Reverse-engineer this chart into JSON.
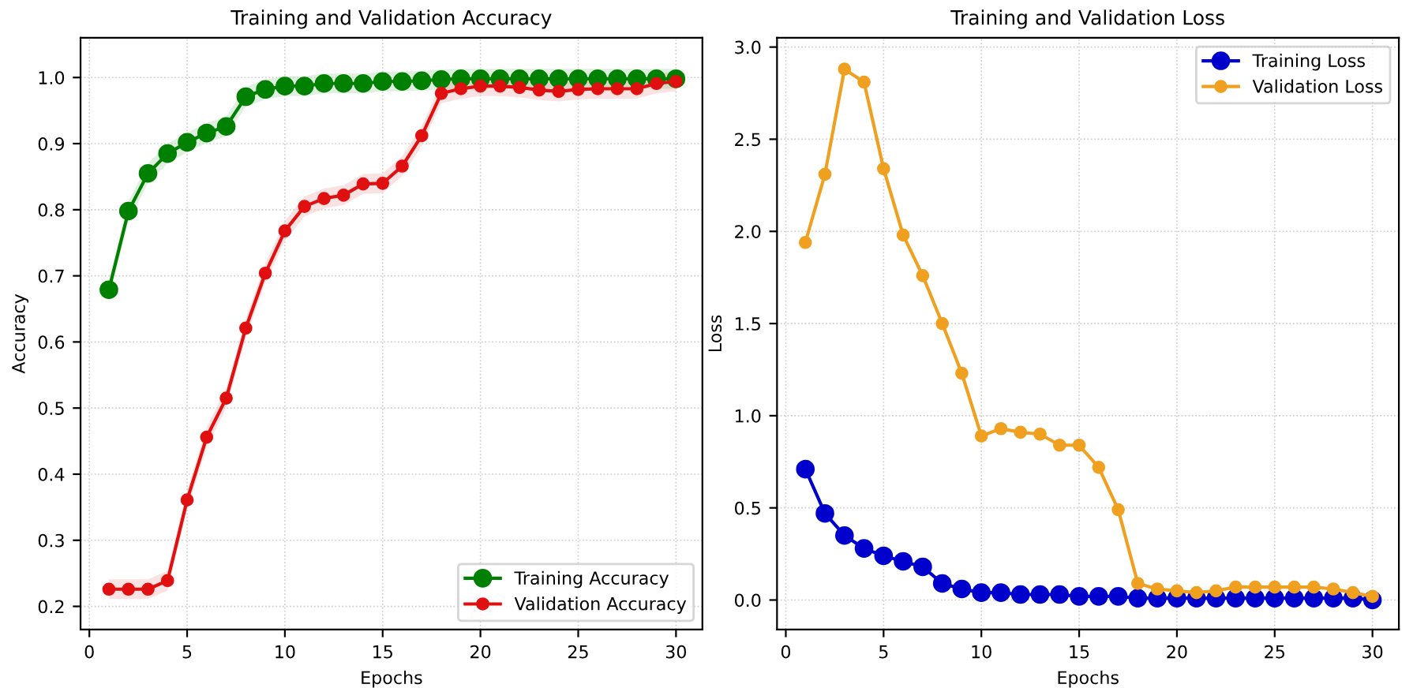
{
  "chart_data": [
    {
      "type": "line",
      "title": "Training and Validation Accuracy",
      "xlabel": "Epochs",
      "ylabel": "Accuracy",
      "x": [
        1,
        2,
        3,
        4,
        5,
        6,
        7,
        8,
        9,
        10,
        11,
        12,
        13,
        14,
        15,
        16,
        17,
        18,
        19,
        20,
        21,
        22,
        23,
        24,
        25,
        26,
        27,
        28,
        29,
        30
      ],
      "series": [
        {
          "name": "Training Accuracy",
          "color": "#008000",
          "values": [
            0.679,
            0.798,
            0.855,
            0.885,
            0.902,
            0.916,
            0.926,
            0.971,
            0.982,
            0.987,
            0.987,
            0.991,
            0.991,
            0.991,
            0.994,
            0.994,
            0.995,
            0.997,
            0.998,
            0.998,
            0.998,
            0.998,
            0.998,
            0.998,
            0.998,
            0.998,
            0.998,
            0.998,
            0.998,
            0.998
          ],
          "lower": [
            0.664,
            0.783,
            0.84,
            0.87,
            0.887,
            0.901,
            0.911,
            0.956,
            0.967,
            0.972,
            0.972,
            0.976,
            0.976,
            0.976,
            0.979,
            0.979,
            0.98,
            0.982,
            0.983,
            0.983,
            0.983,
            0.983,
            0.983,
            0.983,
            0.983,
            0.983,
            0.983,
            0.983,
            0.983,
            0.983
          ],
          "upper": [
            0.694,
            0.813,
            0.87,
            0.9,
            0.917,
            0.931,
            0.941,
            0.986,
            0.997,
            1.002,
            1.002,
            1.006,
            1.006,
            1.006,
            1.009,
            1.009,
            1.01,
            1.012,
            1.013,
            1.013,
            1.013,
            1.013,
            1.013,
            1.013,
            1.013,
            1.013,
            1.013,
            1.013,
            1.013,
            1.013
          ]
        },
        {
          "name": "Validation Accuracy",
          "color": "#e01010",
          "values": [
            0.226,
            0.226,
            0.226,
            0.239,
            0.361,
            0.456,
            0.515,
            0.621,
            0.704,
            0.768,
            0.805,
            0.817,
            0.822,
            0.839,
            0.84,
            0.866,
            0.912,
            0.976,
            0.983,
            0.987,
            0.987,
            0.985,
            0.981,
            0.979,
            0.982,
            0.983,
            0.983,
            0.983,
            0.991,
            0.994
          ],
          "lower": [
            0.211,
            0.211,
            0.211,
            0.224,
            0.346,
            0.441,
            0.5,
            0.606,
            0.689,
            0.753,
            0.79,
            0.802,
            0.807,
            0.824,
            0.825,
            0.851,
            0.897,
            0.961,
            0.968,
            0.972,
            0.972,
            0.97,
            0.966,
            0.964,
            0.967,
            0.968,
            0.968,
            0.968,
            0.976,
            0.979
          ],
          "upper": [
            0.241,
            0.241,
            0.241,
            0.254,
            0.376,
            0.471,
            0.53,
            0.636,
            0.719,
            0.783,
            0.82,
            0.832,
            0.837,
            0.854,
            0.855,
            0.881,
            0.927,
            0.991,
            0.998,
            1.002,
            1.002,
            1.0,
            0.996,
            0.994,
            0.997,
            0.998,
            0.998,
            0.998,
            1.006,
            1.009
          ]
        }
      ],
      "xlim": [
        -0.45,
        31.35
      ],
      "ylim": [
        0.165,
        1.06
      ],
      "xticks": [
        0,
        5,
        10,
        15,
        20,
        25,
        30
      ],
      "yticks": [
        0.2,
        0.3,
        0.4,
        0.5,
        0.6,
        0.7,
        0.8,
        0.9,
        {
          "value": 1.0,
          "label": "1.0"
        }
      ],
      "grid": true,
      "legend": "lower right",
      "marker": "circle",
      "line_style": "solid"
    },
    {
      "type": "line",
      "title": "Training and Validation Loss",
      "xlabel": "Epochs",
      "ylabel": "Loss",
      "x": [
        1,
        2,
        3,
        4,
        5,
        6,
        7,
        8,
        9,
        10,
        11,
        12,
        13,
        14,
        15,
        16,
        17,
        18,
        19,
        20,
        21,
        22,
        23,
        24,
        25,
        26,
        27,
        28,
        29,
        30
      ],
      "series": [
        {
          "name": "Training Loss",
          "color": "#0000cc",
          "values": [
            0.71,
            0.47,
            0.35,
            0.28,
            0.24,
            0.21,
            0.18,
            0.09,
            0.06,
            0.04,
            0.04,
            0.03,
            0.03,
            0.03,
            0.02,
            0.02,
            0.02,
            0.01,
            0.01,
            0.01,
            0.01,
            0.01,
            0.01,
            0.01,
            0.01,
            0.01,
            0.01,
            0.01,
            0.01,
            0.0
          ]
        },
        {
          "name": "Validation Loss",
          "color": "#f0a020",
          "values": [
            1.94,
            2.31,
            2.88,
            2.81,
            2.34,
            1.98,
            1.76,
            1.5,
            1.23,
            0.89,
            0.93,
            0.91,
            0.9,
            0.84,
            0.84,
            0.72,
            0.49,
            0.09,
            0.06,
            0.05,
            0.04,
            0.05,
            0.07,
            0.07,
            0.07,
            0.07,
            0.07,
            0.06,
            0.04,
            0.02
          ]
        }
      ],
      "xlim": [
        -0.45,
        31.35
      ],
      "ylim": [
        -0.16,
        3.05
      ],
      "xticks": [
        0,
        5,
        10,
        15,
        20,
        25,
        30
      ],
      "yticks": [
        {
          "value": 0.0,
          "label": "0.0"
        },
        0.5,
        {
          "value": 1.0,
          "label": "1.0"
        },
        1.5,
        {
          "value": 2.0,
          "label": "2.0"
        },
        2.5,
        {
          "value": 3.0,
          "label": "3.0"
        }
      ],
      "grid": true,
      "legend": "upper right",
      "marker": "circle",
      "line_style": "solid"
    }
  ]
}
